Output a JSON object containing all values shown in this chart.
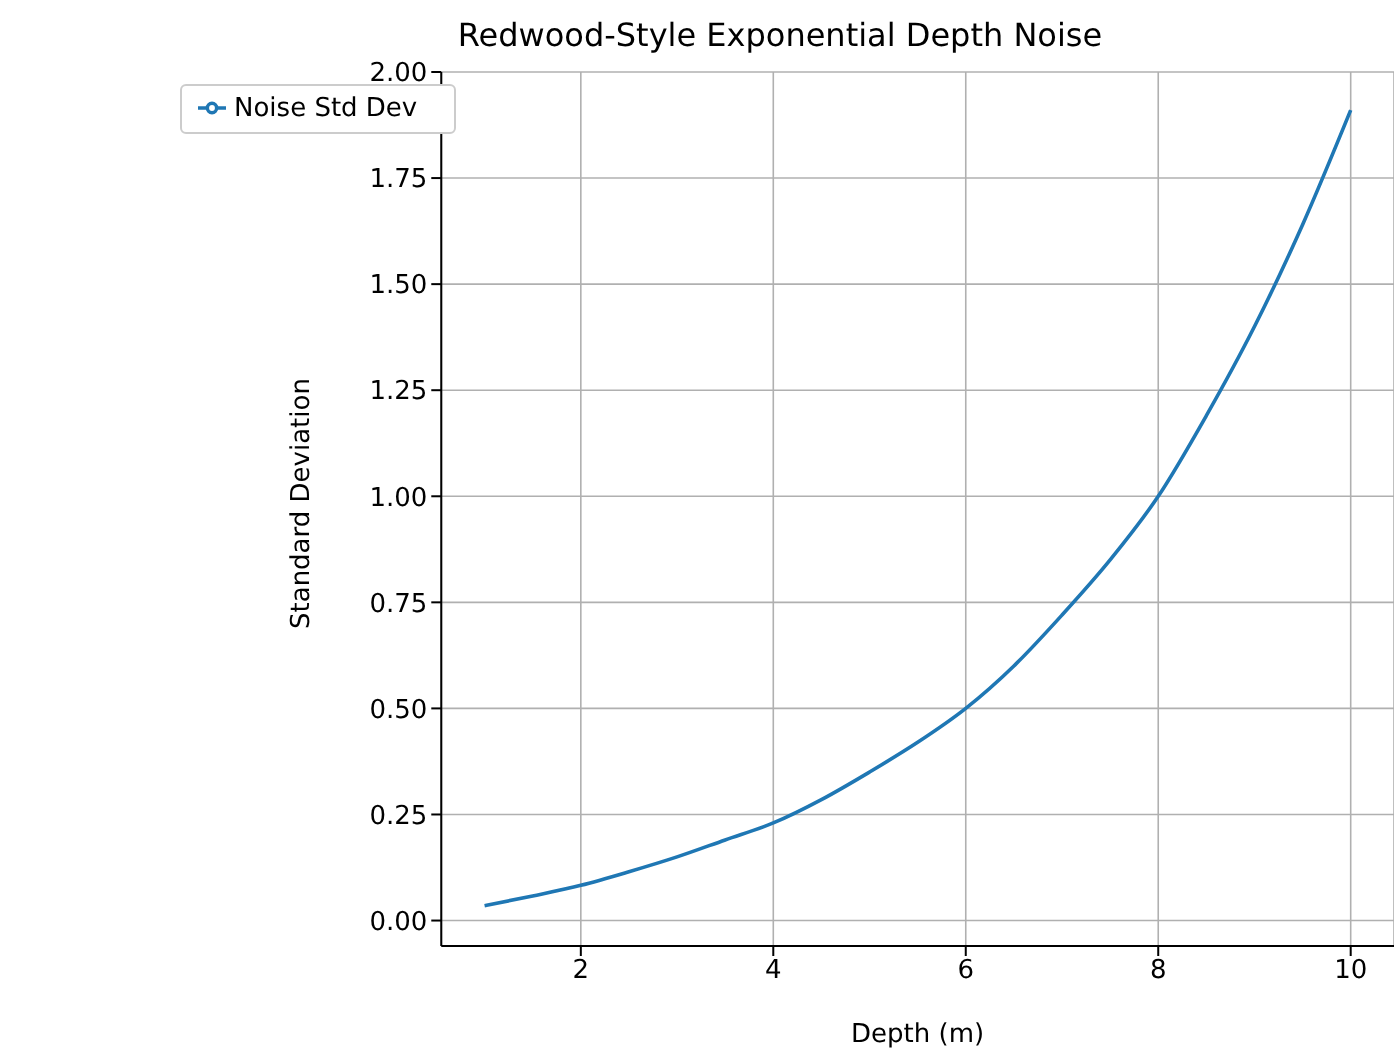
{
  "chart_data": {
    "type": "line",
    "title": "Redwood-Style Exponential Depth Noise",
    "xlabel": "Depth (m)",
    "ylabel": "Standard Deviation",
    "x": [
      1,
      1.5,
      2,
      2.5,
      3,
      3.5,
      4,
      4.5,
      5,
      5.5,
      6,
      6.5,
      7,
      7.5,
      8,
      8.5,
      9,
      9.5,
      10
    ],
    "series": [
      {
        "name": "Noise Std Dev",
        "color": "#1f77b4",
        "values": [
          0.035,
          0.058,
          0.083,
          0.115,
          0.15,
          0.19,
          0.23,
          0.285,
          0.35,
          0.42,
          0.5,
          0.6,
          0.72,
          0.85,
          1.0,
          1.19,
          1.4,
          1.64,
          1.91
        ]
      }
    ],
    "xlim": [
      0.55,
      10.45
    ],
    "xticks": [
      2,
      4,
      6,
      8,
      10
    ],
    "ylim": [
      -0.06,
      2.0
    ],
    "yticks": [
      {
        "value": 0,
        "label": "0.00"
      },
      {
        "value": 0.25,
        "label": "0.25"
      },
      {
        "value": 0.5,
        "label": "0.50"
      },
      {
        "value": 0.75,
        "label": "0.75"
      },
      {
        "value": 1,
        "label": "1.00"
      },
      {
        "value": 1.25,
        "label": "1.25"
      },
      {
        "value": 1.5,
        "label": "1.50"
      },
      {
        "value": 1.75,
        "label": "1.75"
      },
      {
        "value": 2,
        "label": "2.00"
      }
    ],
    "grid": true,
    "legend": "top left",
    "marker": "none",
    "line_style": "solid"
  }
}
